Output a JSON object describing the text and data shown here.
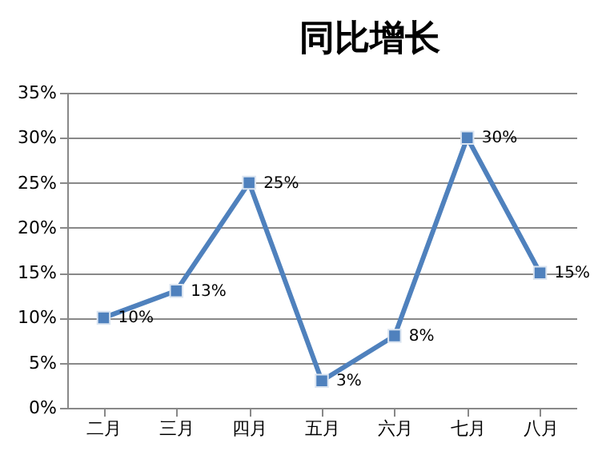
{
  "chart_data": {
    "type": "line",
    "title": "同比增长",
    "categories": [
      "二月",
      "三月",
      "四月",
      "五月",
      "六月",
      "七月",
      "八月"
    ],
    "values": [
      10,
      13,
      25,
      3,
      8,
      30,
      15
    ],
    "value_labels": [
      "10%",
      "13%",
      "25%",
      "3%",
      "8%",
      "30%",
      "15%"
    ],
    "color": "#4f81bd",
    "ylim": [
      0,
      35
    ],
    "yticks": [
      {
        "value": 0,
        "label": "0%"
      },
      {
        "value": 5,
        "label": "5%"
      },
      {
        "value": 10,
        "label": "10%"
      },
      {
        "value": 15,
        "label": "15%"
      },
      {
        "value": 20,
        "label": "20%"
      },
      {
        "value": 25,
        "label": "25%"
      },
      {
        "value": 30,
        "label": "30%"
      },
      {
        "value": 35,
        "label": "35%"
      }
    ],
    "grid": "y",
    "marker": "square",
    "line_style": "solid"
  }
}
